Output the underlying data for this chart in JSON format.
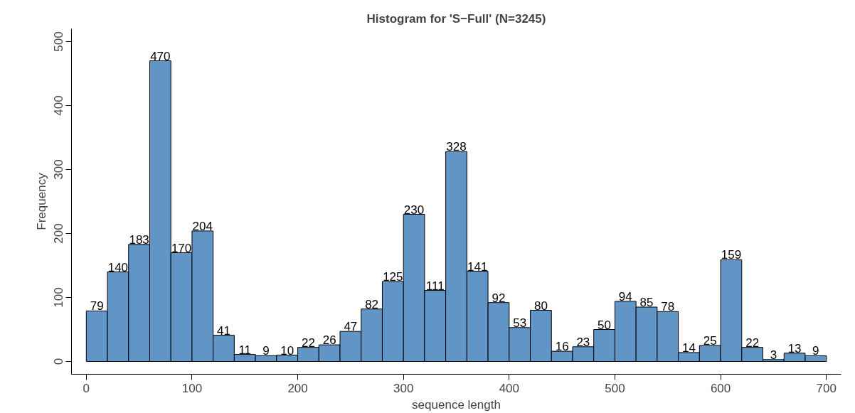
{
  "chart_data": {
    "type": "histogram",
    "title": "Histogram for 'S−Full' (N=3245)",
    "xlabel": "sequence length",
    "ylabel": "Frequency",
    "bins": [
      0,
      20,
      40,
      60,
      80,
      100,
      120,
      140,
      160,
      180,
      200,
      220,
      240,
      260,
      280,
      300,
      320,
      340,
      360,
      380,
      400,
      420,
      440,
      460,
      480,
      500,
      520,
      540,
      560,
      580,
      600,
      620,
      640,
      660,
      680,
      700
    ],
    "values": [
      79,
      140,
      183,
      470,
      170,
      204,
      41,
      11,
      9,
      10,
      22,
      26,
      47,
      82,
      125,
      230,
      111,
      328,
      141,
      92,
      53,
      80,
      16,
      23,
      50,
      94,
      85,
      78,
      14,
      25,
      159,
      22,
      3,
      13,
      9
    ],
    "color": "#6095c5",
    "xlim": [
      -14,
      714
    ],
    "ylim": [
      -20,
      520
    ],
    "xticks": [
      0,
      100,
      200,
      300,
      400,
      500,
      600,
      700
    ],
    "yticks": [
      0,
      100,
      200,
      300,
      400,
      500
    ],
    "grid": false,
    "data_labels": true
  }
}
